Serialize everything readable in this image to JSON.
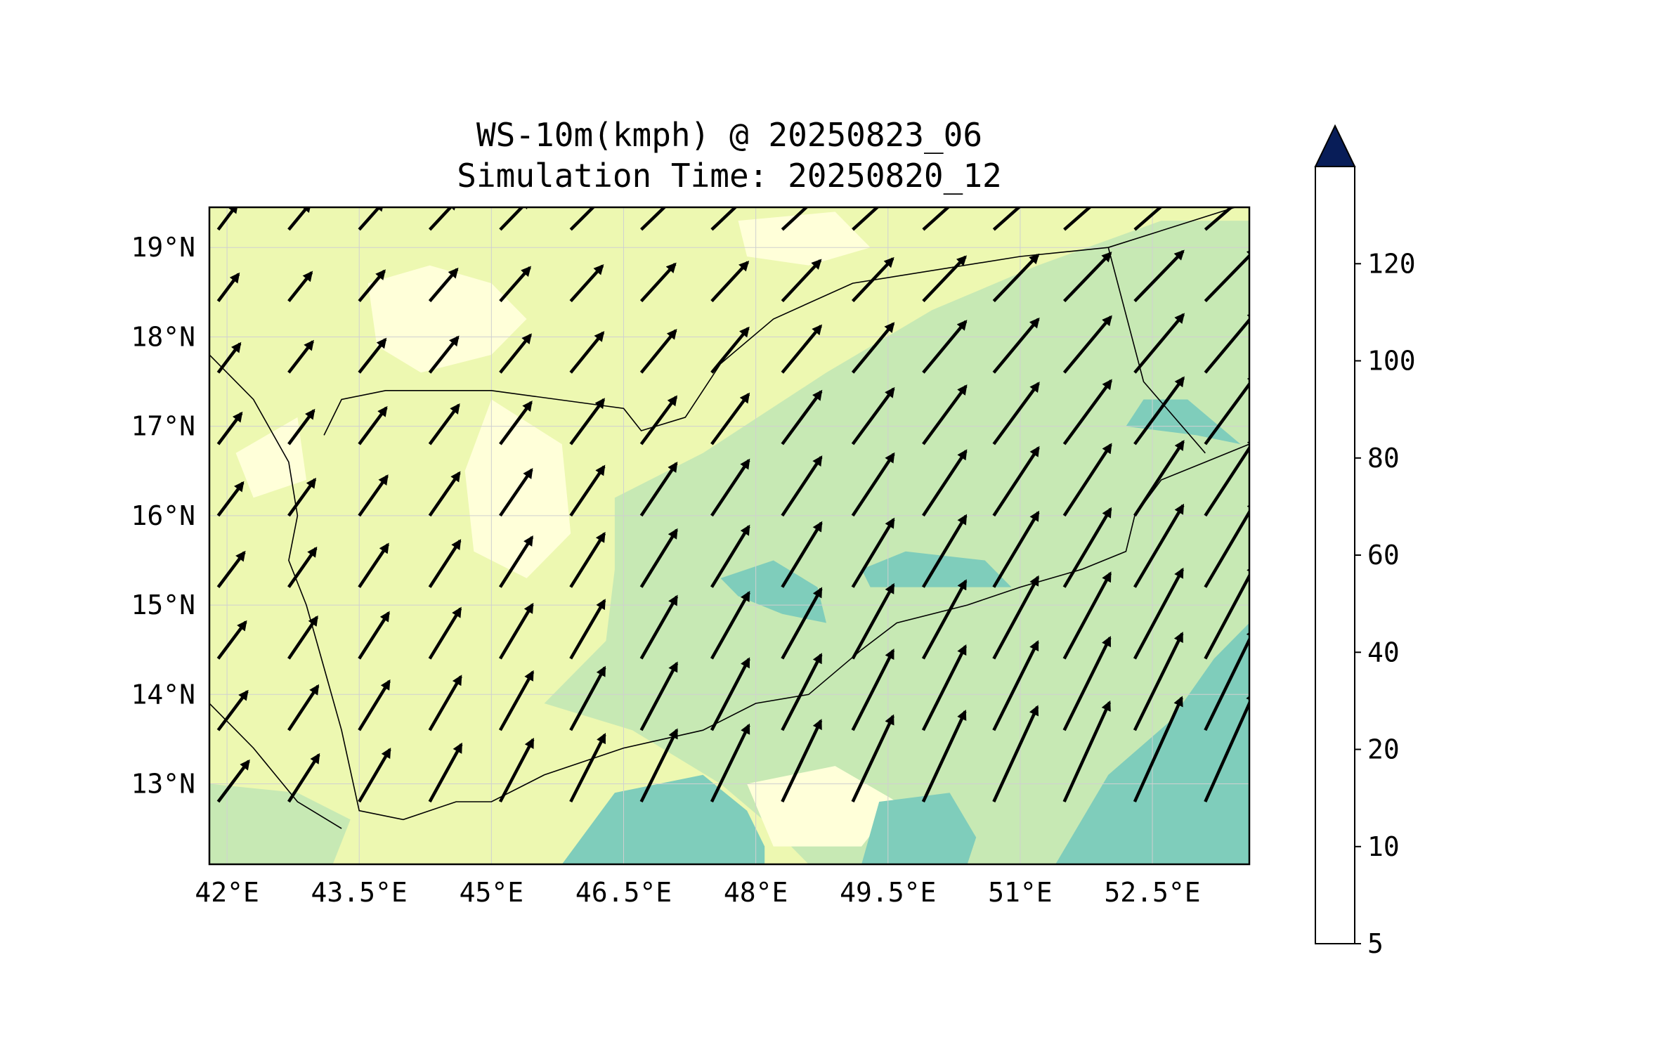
{
  "title": {
    "line1": "WS-10m(kmph) @ 20250823_06",
    "line2": "Simulation Time: 20250820_12"
  },
  "map": {
    "lon_range": [
      41.8,
      53.6
    ],
    "lat_range": [
      12.1,
      19.45
    ],
    "x_ticks": [
      {
        "value": 42.0,
        "label": "42°E"
      },
      {
        "value": 43.5,
        "label": "43.5°E"
      },
      {
        "value": 45.0,
        "label": "45°E"
      },
      {
        "value": 46.5,
        "label": "46.5°E"
      },
      {
        "value": 48.0,
        "label": "48°E"
      },
      {
        "value": 49.5,
        "label": "49.5°E"
      },
      {
        "value": 51.0,
        "label": "51°E"
      },
      {
        "value": 52.5,
        "label": "52.5°E"
      }
    ],
    "y_ticks": [
      {
        "value": 19,
        "label": "19°N"
      },
      {
        "value": 18,
        "label": "18°N"
      },
      {
        "value": 17,
        "label": "17°N"
      },
      {
        "value": 16,
        "label": "16°N"
      },
      {
        "value": 15,
        "label": "15°N"
      },
      {
        "value": 14,
        "label": "14°N"
      },
      {
        "value": 13,
        "label": "13°N"
      }
    ],
    "gridlines": true,
    "background_color": "#edf8b1"
  },
  "colorbar": {
    "levels": [
      5,
      10,
      20,
      40,
      60,
      80,
      100,
      120
    ],
    "colors": [
      "#ffffd9",
      "#edf8b1",
      "#c7e9b4",
      "#7fcdbb",
      "#41b6c4",
      "#1d91c0",
      "#225ea8",
      "#253494"
    ],
    "extend_color": "#081d58",
    "labels": [
      "5",
      "10",
      "20",
      "40",
      "60",
      "80",
      "100",
      "120"
    ],
    "extend": "max"
  },
  "wind_field": {
    "units": "kmph",
    "grid_lon": [
      41.9,
      42.7,
      43.5,
      44.3,
      45.1,
      45.9,
      46.7,
      47.5,
      48.3,
      49.1,
      49.9,
      50.7,
      51.5,
      52.3,
      53.1
    ],
    "grid_lat": [
      19.2,
      18.4,
      17.6,
      16.8,
      16.0,
      15.2,
      14.4,
      13.6,
      12.8
    ]
  }
}
